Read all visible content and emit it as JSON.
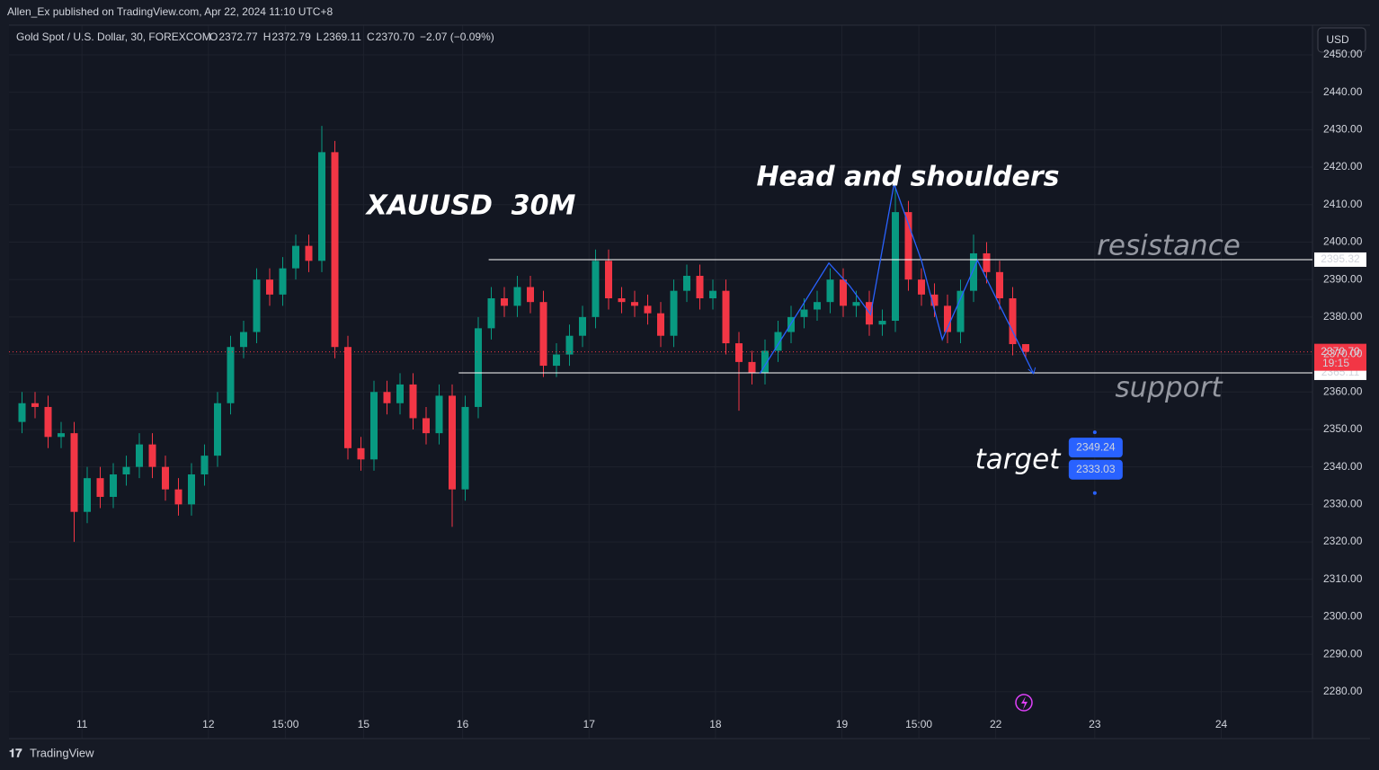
{
  "header": {
    "publisher": "Allen_Ex published on TradingView.com, Apr 22, 2024 11:10 UTC+8",
    "currency": "USD",
    "footer": "TradingView"
  },
  "chart_data": {
    "type": "candlestick",
    "symbol": "Gold Spot / U.S. Dollar, 30, FOREXCOM",
    "title": "XAUUSD  30M",
    "pattern_label": "Head and shoulders",
    "legend": {
      "o": "O",
      "h": "H",
      "l": "L",
      "c": "C",
      "change": "−2.07 (−0.09%)"
    },
    "up_color": "#089981",
    "down_color": "#f23645",
    "x": [
      1,
      2,
      3,
      4,
      5,
      6,
      7,
      8,
      9,
      10,
      11,
      12,
      13,
      14,
      15,
      16,
      17,
      18,
      19,
      20,
      21,
      22,
      23,
      24,
      25,
      26,
      27,
      28,
      29,
      30,
      31,
      32,
      33,
      34,
      35,
      36,
      37,
      38,
      39,
      40,
      41,
      42,
      43,
      44,
      45,
      46,
      47,
      48,
      49,
      50,
      51,
      52,
      53,
      54,
      55,
      56,
      57,
      58,
      59,
      60,
      61,
      62,
      63,
      64,
      65,
      66,
      67,
      68,
      69,
      70,
      71,
      72,
      73,
      74,
      75,
      76,
      77,
      78
    ],
    "open": [
      2352,
      2357,
      2356,
      2348,
      2349,
      2328,
      2337,
      2332,
      2338,
      2340,
      2346,
      2340,
      2334,
      2330,
      2338,
      2343,
      2357,
      2372,
      2376,
      2390,
      2386,
      2393,
      2399,
      2395,
      2424,
      2372,
      2345,
      2342,
      2360,
      2357,
      2362,
      2353,
      2349,
      2359,
      2334,
      2356,
      2377,
      2385,
      2383,
      2388,
      2384,
      2367,
      2370,
      2375,
      2380,
      2395,
      2385,
      2384,
      2383,
      2381,
      2375,
      2387,
      2391,
      2385,
      2387,
      2373,
      2368,
      2365,
      2371,
      2376,
      2380,
      2382,
      2384,
      2390,
      2383,
      2384,
      2378,
      2379,
      2408,
      2390,
      2386,
      2383,
      2376,
      2387,
      2397,
      2392,
      2385,
      2372.77
    ],
    "high": [
      2360,
      2360,
      2359,
      2352,
      2352,
      2340,
      2340,
      2341,
      2343,
      2349,
      2349,
      2343,
      2337,
      2341,
      2346,
      2360,
      2375,
      2379,
      2393,
      2393,
      2396,
      2402,
      2402,
      2431,
      2427,
      2375,
      2348,
      2363,
      2363,
      2365,
      2365,
      2356,
      2362,
      2362,
      2359,
      2380,
      2388,
      2388,
      2391,
      2391,
      2387,
      2373,
      2378,
      2383,
      2398,
      2398,
      2388,
      2387,
      2386,
      2384,
      2390,
      2394,
      2394,
      2390,
      2390,
      2376,
      2371,
      2374,
      2379,
      2383,
      2385,
      2387,
      2393,
      2393,
      2387,
      2387,
      2382,
      2415,
      2411,
      2393,
      2389,
      2386,
      2390,
      2402,
      2400,
      2395,
      2388,
      2372.79
    ],
    "low": [
      2349,
      2353,
      2345,
      2345,
      2320,
      2325,
      2329,
      2329,
      2335,
      2337,
      2337,
      2331,
      2327,
      2327,
      2335,
      2340,
      2354,
      2369,
      2373,
      2383,
      2383,
      2390,
      2392,
      2392,
      2369,
      2342,
      2339,
      2339,
      2354,
      2354,
      2350,
      2346,
      2346,
      2324,
      2331,
      2353,
      2374,
      2380,
      2380,
      2381,
      2364,
      2364,
      2367,
      2372,
      2377,
      2382,
      2381,
      2380,
      2378,
      2372,
      2372,
      2384,
      2382,
      2382,
      2370,
      2355,
      2362,
      2362,
      2368,
      2373,
      2377,
      2379,
      2381,
      2380,
      2380,
      2375,
      2375,
      2376,
      2387,
      2383,
      2380,
      2373,
      2373,
      2384,
      2389,
      2382,
      2369.77,
      2369.11
    ],
    "close": [
      2357,
      2356,
      2348,
      2349,
      2328,
      2337,
      2332,
      2338,
      2340,
      2346,
      2340,
      2334,
      2330,
      2338,
      2343,
      2357,
      2372,
      2376,
      2390,
      2386,
      2393,
      2399,
      2395,
      2424,
      2372,
      2345,
      2342,
      2360,
      2357,
      2362,
      2353,
      2349,
      2359,
      2334,
      2356,
      2377,
      2385,
      2383,
      2388,
      2384,
      2367,
      2370,
      2375,
      2380,
      2395,
      2385,
      2384,
      2383,
      2381,
      2375,
      2387,
      2391,
      2385,
      2387,
      2373,
      2368,
      2365,
      2371,
      2376,
      2380,
      2382,
      2384,
      2390,
      2383,
      2384,
      2378,
      2379,
      2408,
      2390,
      2386,
      2383,
      2376,
      2387,
      2397,
      2392,
      2385,
      2372.77,
      2370.7
    ],
    "last": {
      "value": 2370.7,
      "label": "2370.70",
      "countdown": "19:15"
    },
    "levels": [
      {
        "name": "resistance",
        "value": 2395.32,
        "x_start": 36.8
      },
      {
        "name": "support",
        "value": 2365.11,
        "x_start": 34.5
      }
    ],
    "pattern": {
      "color": "#2962ff",
      "x": [
        57.6,
        62.9,
        64.5,
        66.1,
        67.9,
        70.0,
        71.6,
        74.3,
        78.6
      ],
      "y": [
        2364.9,
        2394.4,
        2388.3,
        2380.7,
        2415.5,
        2395.1,
        2374.0,
        2395.1,
        2364.9
      ]
    },
    "target": {
      "name": "target",
      "x": 83.3,
      "values": [
        2349.24,
        2333.03
      ]
    },
    "xlim": [
      0,
      100
    ],
    "ylim": [
      2267.5,
      2457.9
    ],
    "xticks": [
      {
        "value": 5.6,
        "label": "11"
      },
      {
        "value": 15.3,
        "label": "12"
      },
      {
        "value": 21.2,
        "label": "15:00"
      },
      {
        "value": 27.2,
        "label": "15"
      },
      {
        "value": 34.8,
        "label": "16"
      },
      {
        "value": 44.5,
        "label": "17"
      },
      {
        "value": 54.2,
        "label": "18"
      },
      {
        "value": 63.9,
        "label": "19"
      },
      {
        "value": 69.8,
        "label": "15:00"
      },
      {
        "value": 75.7,
        "label": "22"
      },
      {
        "value": 83.3,
        "label": "23"
      },
      {
        "value": 93.0,
        "label": "24"
      }
    ],
    "yticks": [
      {
        "value": 2280,
        "label": "2280.00"
      },
      {
        "value": 2290,
        "label": "2290.00"
      },
      {
        "value": 2300,
        "label": "2300.00"
      },
      {
        "value": 2310,
        "label": "2310.00"
      },
      {
        "value": 2320,
        "label": "2320.00"
      },
      {
        "value": 2330,
        "label": "2330.00"
      },
      {
        "value": 2340,
        "label": "2340.00"
      },
      {
        "value": 2350,
        "label": "2350.00"
      },
      {
        "value": 2360,
        "label": "2360.00"
      },
      {
        "value": 2370,
        "label": "2370.00"
      },
      {
        "value": 2380,
        "label": "2380.00"
      },
      {
        "value": 2390,
        "label": "2390.00"
      },
      {
        "value": 2400,
        "label": "2400.00"
      },
      {
        "value": 2410,
        "label": "2410.00"
      },
      {
        "value": 2420,
        "label": "2420.00"
      },
      {
        "value": 2430,
        "label": "2430.00"
      },
      {
        "value": 2440,
        "label": "2440.00"
      },
      {
        "value": 2450,
        "label": "2450.00"
      }
    ],
    "grid": true
  }
}
